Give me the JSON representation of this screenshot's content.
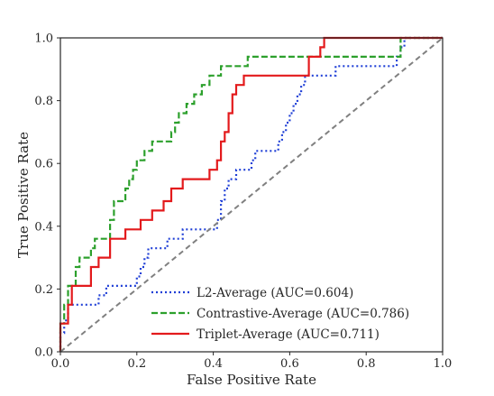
{
  "chart_data": {
    "type": "line",
    "xlabel": "False Positive Rate",
    "ylabel": "True Positive Rate",
    "xlim": [
      0.0,
      1.0
    ],
    "ylim": [
      0.0,
      1.0
    ],
    "x_ticks": [
      "0.0",
      "0.2",
      "0.4",
      "0.6",
      "0.8",
      "1.0"
    ],
    "y_ticks": [
      "0.0",
      "0.2",
      "0.4",
      "0.6",
      "0.8",
      "1.0"
    ],
    "grid": false,
    "legend_position": "lower-right",
    "series": [
      {
        "name": "L2-Average (AUC=0.604)",
        "color": "#1f3fd6",
        "style": "dotted",
        "points": [
          [
            0.0,
            0.0
          ],
          [
            0.0,
            0.06
          ],
          [
            0.01,
            0.06
          ],
          [
            0.01,
            0.1
          ],
          [
            0.02,
            0.1
          ],
          [
            0.02,
            0.15
          ],
          [
            0.1,
            0.15
          ],
          [
            0.1,
            0.18
          ],
          [
            0.12,
            0.18
          ],
          [
            0.12,
            0.21
          ],
          [
            0.2,
            0.21
          ],
          [
            0.2,
            0.24
          ],
          [
            0.21,
            0.24
          ],
          [
            0.21,
            0.27
          ],
          [
            0.22,
            0.27
          ],
          [
            0.22,
            0.3
          ],
          [
            0.23,
            0.3
          ],
          [
            0.23,
            0.33
          ],
          [
            0.28,
            0.33
          ],
          [
            0.28,
            0.36
          ],
          [
            0.32,
            0.36
          ],
          [
            0.32,
            0.39
          ],
          [
            0.41,
            0.39
          ],
          [
            0.41,
            0.42
          ],
          [
            0.42,
            0.42
          ],
          [
            0.42,
            0.48
          ],
          [
            0.43,
            0.48
          ],
          [
            0.43,
            0.52
          ],
          [
            0.44,
            0.52
          ],
          [
            0.44,
            0.55
          ],
          [
            0.46,
            0.55
          ],
          [
            0.46,
            0.58
          ],
          [
            0.5,
            0.58
          ],
          [
            0.5,
            0.61
          ],
          [
            0.51,
            0.61
          ],
          [
            0.51,
            0.64
          ],
          [
            0.57,
            0.64
          ],
          [
            0.57,
            0.67
          ],
          [
            0.58,
            0.67
          ],
          [
            0.58,
            0.7
          ],
          [
            0.59,
            0.7
          ],
          [
            0.59,
            0.73
          ],
          [
            0.6,
            0.73
          ],
          [
            0.6,
            0.76
          ],
          [
            0.61,
            0.76
          ],
          [
            0.61,
            0.79
          ],
          [
            0.62,
            0.79
          ],
          [
            0.62,
            0.82
          ],
          [
            0.63,
            0.82
          ],
          [
            0.63,
            0.85
          ],
          [
            0.64,
            0.85
          ],
          [
            0.64,
            0.88
          ],
          [
            0.72,
            0.88
          ],
          [
            0.72,
            0.91
          ],
          [
            0.88,
            0.91
          ],
          [
            0.88,
            0.94
          ],
          [
            0.89,
            0.94
          ],
          [
            0.89,
            0.97
          ],
          [
            0.9,
            0.97
          ],
          [
            0.9,
            1.0
          ],
          [
            1.0,
            1.0
          ]
        ]
      },
      {
        "name": "Contrastive-Average (AUC=0.786)",
        "color": "#2ca02c",
        "style": "dashed",
        "points": [
          [
            0.0,
            0.0
          ],
          [
            0.0,
            0.09
          ],
          [
            0.01,
            0.09
          ],
          [
            0.01,
            0.15
          ],
          [
            0.02,
            0.15
          ],
          [
            0.02,
            0.21
          ],
          [
            0.04,
            0.21
          ],
          [
            0.04,
            0.27
          ],
          [
            0.05,
            0.27
          ],
          [
            0.05,
            0.3
          ],
          [
            0.08,
            0.3
          ],
          [
            0.08,
            0.33
          ],
          [
            0.09,
            0.33
          ],
          [
            0.09,
            0.36
          ],
          [
            0.13,
            0.36
          ],
          [
            0.13,
            0.42
          ],
          [
            0.14,
            0.42
          ],
          [
            0.14,
            0.48
          ],
          [
            0.17,
            0.48
          ],
          [
            0.17,
            0.52
          ],
          [
            0.18,
            0.52
          ],
          [
            0.18,
            0.55
          ],
          [
            0.19,
            0.55
          ],
          [
            0.19,
            0.58
          ],
          [
            0.2,
            0.58
          ],
          [
            0.2,
            0.61
          ],
          [
            0.22,
            0.61
          ],
          [
            0.22,
            0.64
          ],
          [
            0.24,
            0.64
          ],
          [
            0.24,
            0.67
          ],
          [
            0.29,
            0.67
          ],
          [
            0.29,
            0.7
          ],
          [
            0.3,
            0.7
          ],
          [
            0.3,
            0.73
          ],
          [
            0.31,
            0.73
          ],
          [
            0.31,
            0.76
          ],
          [
            0.33,
            0.76
          ],
          [
            0.33,
            0.79
          ],
          [
            0.35,
            0.79
          ],
          [
            0.35,
            0.82
          ],
          [
            0.37,
            0.82
          ],
          [
            0.37,
            0.85
          ],
          [
            0.39,
            0.85
          ],
          [
            0.39,
            0.88
          ],
          [
            0.42,
            0.88
          ],
          [
            0.42,
            0.91
          ],
          [
            0.49,
            0.91
          ],
          [
            0.49,
            0.94
          ],
          [
            0.89,
            0.94
          ],
          [
            0.89,
            1.0
          ],
          [
            1.0,
            1.0
          ]
        ]
      },
      {
        "name": "Triplet-Average (AUC=0.711)",
        "color": "#e31a1c",
        "style": "solid",
        "points": [
          [
            0.0,
            0.0
          ],
          [
            0.0,
            0.09
          ],
          [
            0.02,
            0.09
          ],
          [
            0.02,
            0.15
          ],
          [
            0.03,
            0.15
          ],
          [
            0.03,
            0.21
          ],
          [
            0.08,
            0.21
          ],
          [
            0.08,
            0.27
          ],
          [
            0.1,
            0.27
          ],
          [
            0.1,
            0.3
          ],
          [
            0.13,
            0.3
          ],
          [
            0.13,
            0.36
          ],
          [
            0.17,
            0.36
          ],
          [
            0.17,
            0.39
          ],
          [
            0.21,
            0.39
          ],
          [
            0.21,
            0.42
          ],
          [
            0.24,
            0.42
          ],
          [
            0.24,
            0.45
          ],
          [
            0.27,
            0.45
          ],
          [
            0.27,
            0.48
          ],
          [
            0.29,
            0.48
          ],
          [
            0.29,
            0.52
          ],
          [
            0.32,
            0.52
          ],
          [
            0.32,
            0.55
          ],
          [
            0.39,
            0.55
          ],
          [
            0.39,
            0.58
          ],
          [
            0.41,
            0.58
          ],
          [
            0.41,
            0.61
          ],
          [
            0.42,
            0.61
          ],
          [
            0.42,
            0.67
          ],
          [
            0.43,
            0.67
          ],
          [
            0.43,
            0.7
          ],
          [
            0.44,
            0.7
          ],
          [
            0.44,
            0.76
          ],
          [
            0.45,
            0.76
          ],
          [
            0.45,
            0.82
          ],
          [
            0.46,
            0.82
          ],
          [
            0.46,
            0.85
          ],
          [
            0.48,
            0.85
          ],
          [
            0.48,
            0.88
          ],
          [
            0.65,
            0.88
          ],
          [
            0.65,
            0.94
          ],
          [
            0.68,
            0.94
          ],
          [
            0.68,
            0.97
          ],
          [
            0.69,
            0.97
          ],
          [
            0.69,
            1.0
          ],
          [
            1.0,
            1.0
          ]
        ]
      },
      {
        "color": "#808080",
        "style": "dashed-reference",
        "points": [
          [
            0.0,
            0.0
          ],
          [
            1.0,
            1.0
          ]
        ]
      }
    ]
  }
}
